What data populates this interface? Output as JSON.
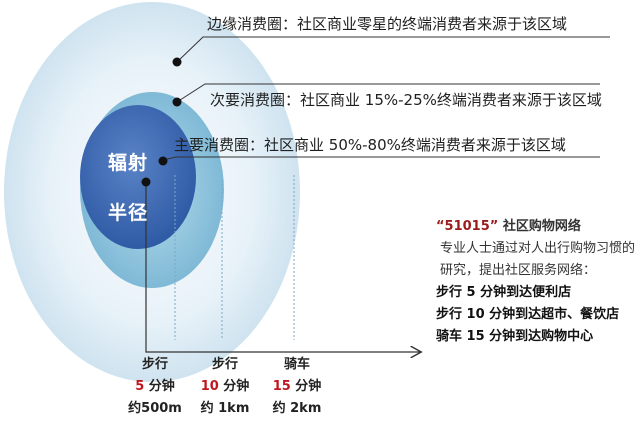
{
  "center_label": {
    "line1": "辐射",
    "line2": "半径"
  },
  "ring_labels": {
    "outer": "边缘消费圈：社区商业零星的终端消费者来源于该区域",
    "middle": "次要消费圈：社区商业 15%-25%终端消费者来源于该区域",
    "inner": "主要消费圈：社区商业 50%-80%终端消费者来源于该区域"
  },
  "network": {
    "title_quoted": "“51015”",
    "title_rest": " 社区购物网络",
    "description": "专业人士通过对人出行购物习惯的研究，提出社区服务网络：",
    "items": [
      "步行 5 分钟到达便利店",
      "步行 10 分钟到达超市、餐饮店",
      "骑车 15 分钟到达购物中心"
    ]
  },
  "metrics": [
    {
      "mode": "步行",
      "time_num": "5",
      "time_unit": " 分钟",
      "distance": "约500m"
    },
    {
      "mode": "步行",
      "time_num": "10",
      "time_unit": " 分钟",
      "distance": "约 1km"
    },
    {
      "mode": "骑车",
      "time_num": "15",
      "time_unit": " 分钟",
      "distance": "约 2km"
    }
  ],
  "colors": {
    "outer_ring": "#dcebf5",
    "middle_ring": "#8ec3dc",
    "inner_ring": "#3d6bb5",
    "accent_red": "#c0161f"
  }
}
